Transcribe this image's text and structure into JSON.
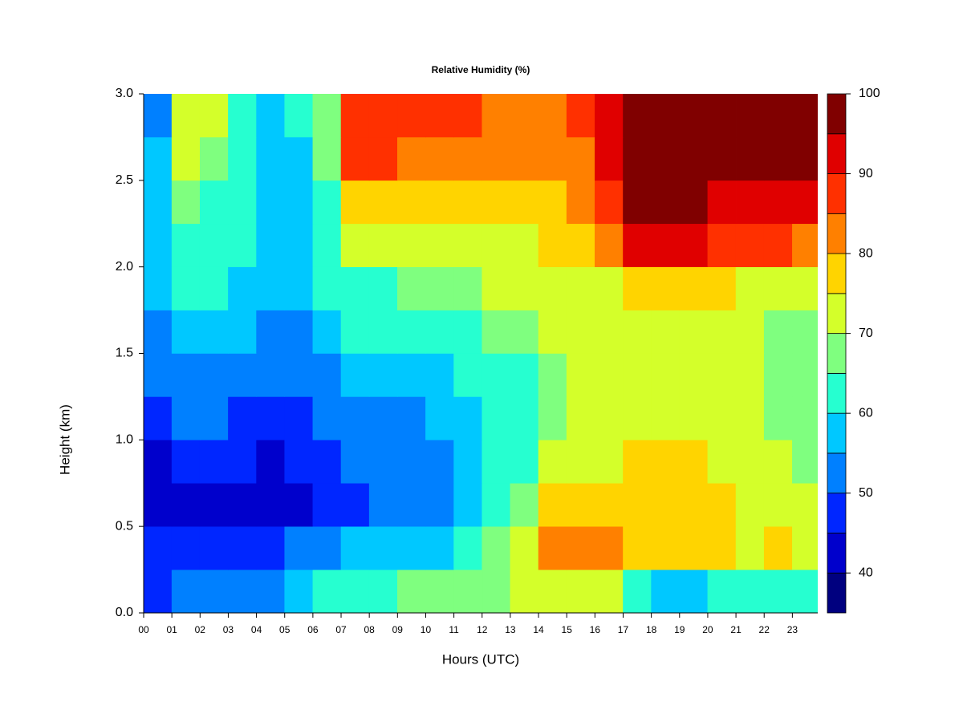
{
  "chart_data": {
    "type": "contour",
    "title": "Relative Humidity (%)",
    "xlabel": "Hours (UTC)",
    "ylabel": "Height (km)",
    "x": [
      0.5,
      1.5,
      2.5,
      3.5,
      4.5,
      5.5,
      6.5,
      7.5,
      8.5,
      9.5,
      10.5,
      11.5,
      12.5,
      13.5,
      14.5,
      15.5,
      16.5,
      17.5,
      18.5,
      19.5,
      20.5,
      21.5,
      22.5,
      23.5
    ],
    "y": [
      0.125,
      0.375,
      0.625,
      0.875,
      1.125,
      1.375,
      1.625,
      1.875,
      2.125,
      2.375,
      2.625,
      2.875
    ],
    "z": [
      [
        48,
        50,
        52,
        53,
        54,
        56,
        60,
        63,
        64,
        65,
        65,
        66,
        67,
        70,
        73,
        74,
        70,
        60,
        55,
        56,
        60,
        62,
        62,
        62
      ],
      [
        45,
        47,
        48,
        48,
        48,
        50,
        52,
        55,
        57,
        58,
        58,
        60,
        65,
        72,
        83,
        83,
        80,
        76,
        76,
        76,
        76,
        74,
        76,
        72
      ],
      [
        42,
        44,
        44,
        44,
        43,
        44,
        47,
        48,
        50,
        50,
        50,
        55,
        60,
        65,
        75,
        77,
        77,
        77,
        77,
        77,
        76,
        74,
        74,
        70
      ],
      [
        43,
        45,
        45,
        45,
        44,
        45,
        48,
        50,
        51,
        51,
        53,
        57,
        60,
        64,
        70,
        72,
        74,
        76,
        75,
        76,
        74,
        72,
        70,
        67
      ],
      [
        48,
        50,
        50,
        48,
        48,
        48,
        52,
        53,
        54,
        54,
        55,
        58,
        61,
        64,
        69,
        70,
        72,
        74,
        74,
        74,
        72,
        70,
        68,
        66
      ],
      [
        50,
        52,
        53,
        50,
        50,
        50,
        54,
        56,
        56,
        57,
        57,
        60,
        62,
        64,
        68,
        70,
        72,
        74,
        73,
        74,
        72,
        70,
        68,
        66
      ],
      [
        53,
        57,
        56,
        55,
        54,
        53,
        57,
        60,
        60,
        60,
        62,
        64,
        65,
        67,
        70,
        72,
        72,
        73,
        73,
        74,
        72,
        70,
        68,
        66
      ],
      [
        55,
        60,
        60,
        58,
        56,
        55,
        60,
        63,
        64,
        66,
        68,
        68,
        70,
        70,
        72,
        74,
        74,
        76,
        77,
        77,
        76,
        74,
        72,
        70
      ],
      [
        57,
        62,
        62,
        60,
        57,
        57,
        62,
        72,
        72,
        74,
        74,
        74,
        74,
        74,
        76,
        78,
        82,
        90,
        92,
        90,
        88,
        88,
        86,
        84
      ],
      [
        55,
        66,
        64,
        60,
        58,
        58,
        64,
        78,
        78,
        78,
        78,
        76,
        76,
        78,
        78,
        80,
        86,
        96,
        96,
        95,
        94,
        94,
        94,
        92
      ],
      [
        55,
        70,
        68,
        62,
        58,
        58,
        66,
        85,
        85,
        84,
        82,
        80,
        82,
        80,
        82,
        83,
        90,
        96,
        97,
        98,
        98,
        96,
        96,
        96
      ],
      [
        52,
        72,
        70,
        60,
        57,
        60,
        68,
        88,
        88,
        87,
        86,
        86,
        84,
        82,
        83,
        86,
        94,
        96,
        98,
        99,
        99,
        97,
        98,
        97
      ]
    ],
    "xlim": [
      0,
      23.9
    ],
    "ylim": [
      0,
      3
    ],
    "xticks": [
      {
        "value": 0,
        "label": "00"
      },
      {
        "value": 1,
        "label": "01"
      },
      {
        "value": 2,
        "label": "02"
      },
      {
        "value": 3,
        "label": "03"
      },
      {
        "value": 4,
        "label": "04"
      },
      {
        "value": 5,
        "label": "05"
      },
      {
        "value": 6,
        "label": "06"
      },
      {
        "value": 7,
        "label": "07"
      },
      {
        "value": 8,
        "label": "08"
      },
      {
        "value": 9,
        "label": "09"
      },
      10,
      11,
      12,
      13,
      14,
      15,
      16,
      17,
      18,
      19,
      20,
      21,
      22,
      23
    ],
    "yticks": [
      {
        "value": 0,
        "label": "0.0"
      },
      0.5,
      {
        "value": 1,
        "label": "1.0"
      },
      1.5,
      {
        "value": 2,
        "label": "2.0"
      },
      2.5,
      {
        "value": 3,
        "label": "3.0"
      }
    ],
    "levels": [
      35,
      40,
      45,
      50,
      55,
      60,
      65,
      70,
      75,
      80,
      85,
      90,
      95,
      100
    ],
    "colors": [
      "#00007f",
      "#0000cc",
      "#0026ff",
      "#0080ff",
      "#00c8ff",
      "#26ffd0",
      "#7fff7f",
      "#d4ff2a",
      "#ffd400",
      "#ff8000",
      "#ff3000",
      "#e00000",
      "#800000"
    ],
    "colorbar_ticks": [
      40,
      50,
      60,
      70,
      80,
      90,
      100
    ]
  }
}
